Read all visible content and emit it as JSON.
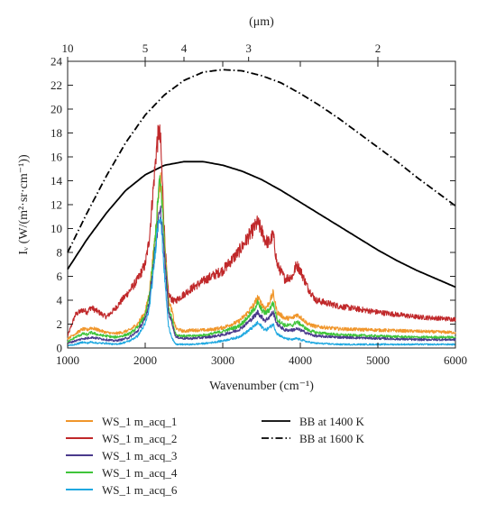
{
  "chart_data": {
    "type": "line",
    "xlabel": "Wavenumber (cm⁻¹)",
    "ylabel": "Iᵥ (W/(m²·sr·cm⁻¹))",
    "top_axis_label": "(μm)",
    "xlim": [
      1000,
      6000
    ],
    "ylim": [
      0,
      24
    ],
    "x_ticks": [
      1000,
      2000,
      3000,
      4000,
      5000,
      6000
    ],
    "y_ticks": [
      0,
      2,
      4,
      6,
      8,
      10,
      12,
      14,
      16,
      18,
      20,
      22,
      24
    ],
    "top_ticks": [
      {
        "label": "10",
        "um": 10
      },
      {
        "label": "5",
        "um": 5
      },
      {
        "label": "4",
        "um": 4
      },
      {
        "label": "3",
        "um": 3
      },
      {
        "label": "2",
        "um": 2
      }
    ],
    "grid": false,
    "legend_position": "bottom",
    "series": [
      {
        "name": "WS_1 m_acq_1",
        "color": "#f0962b",
        "style": "solid",
        "x": [
          1000,
          1100,
          1200,
          1250,
          1300,
          1400,
          1500,
          1600,
          1700,
          1800,
          1900,
          2000,
          2050,
          2100,
          2150,
          2180,
          2200,
          2220,
          2250,
          2280,
          2300,
          2350,
          2380,
          2400,
          2500,
          2600,
          2800,
          3000,
          3200,
          3300,
          3400,
          3450,
          3500,
          3550,
          3600,
          3650,
          3700,
          3800,
          3900,
          3950,
          4000,
          4100,
          4200,
          4500,
          5000,
          5500,
          6000
        ],
        "y": [
          0.8,
          1.2,
          1.6,
          1.5,
          1.7,
          1.5,
          1.3,
          1.2,
          1.3,
          1.5,
          2.0,
          3.0,
          4.5,
          7.5,
          11.0,
          13.5,
          14.0,
          12.5,
          9.0,
          6.0,
          4.0,
          3.0,
          2.0,
          1.6,
          1.4,
          1.5,
          1.5,
          1.7,
          2.2,
          2.8,
          3.6,
          4.2,
          3.7,
          3.3,
          3.8,
          4.6,
          3.0,
          2.5,
          2.5,
          2.8,
          2.6,
          2.0,
          1.8,
          1.6,
          1.5,
          1.4,
          1.3
        ]
      },
      {
        "name": "WS_1 m_acq_2",
        "color": "#c0282a",
        "style": "solid",
        "x": [
          1000,
          1100,
          1200,
          1250,
          1300,
          1400,
          1500,
          1600,
          1700,
          1800,
          1900,
          2000,
          2050,
          2100,
          2150,
          2180,
          2200,
          2220,
          2250,
          2280,
          2300,
          2350,
          2380,
          2400,
          2500,
          2600,
          2800,
          3000,
          3200,
          3300,
          3400,
          3450,
          3500,
          3550,
          3600,
          3650,
          3700,
          3800,
          3900,
          3950,
          4000,
          4100,
          4200,
          4500,
          5000,
          5500,
          6000
        ],
        "y": [
          1.0,
          2.8,
          3.2,
          3.0,
          3.4,
          3.0,
          2.6,
          3.2,
          4.0,
          4.8,
          5.7,
          7.0,
          9.0,
          13.0,
          17.0,
          18.2,
          17.0,
          14.0,
          9.5,
          6.0,
          4.5,
          4.0,
          3.9,
          4.0,
          4.5,
          5.0,
          5.8,
          6.5,
          8.0,
          9.0,
          10.0,
          10.5,
          9.8,
          9.0,
          8.8,
          9.5,
          7.0,
          5.8,
          6.0,
          7.0,
          6.5,
          5.0,
          4.0,
          3.5,
          3.0,
          2.6,
          2.4
        ]
      },
      {
        "name": "WS_1 m_acq_3",
        "color": "#4a3a8c",
        "style": "solid",
        "x": [
          1000,
          1100,
          1200,
          1250,
          1300,
          1400,
          1500,
          1600,
          1700,
          1800,
          1900,
          2000,
          2050,
          2100,
          2150,
          2180,
          2200,
          2220,
          2250,
          2280,
          2300,
          2350,
          2380,
          2400,
          2500,
          2600,
          2800,
          3000,
          3200,
          3300,
          3400,
          3450,
          3500,
          3550,
          3600,
          3650,
          3700,
          3800,
          3900,
          3950,
          4000,
          4100,
          4200,
          4500,
          5000,
          5500,
          6000
        ],
        "y": [
          0.4,
          0.6,
          0.8,
          0.8,
          0.9,
          0.8,
          0.7,
          0.6,
          0.7,
          0.9,
          1.4,
          2.4,
          3.8,
          6.5,
          9.5,
          11.0,
          11.3,
          10.0,
          7.5,
          5.0,
          3.0,
          2.0,
          1.2,
          0.9,
          0.8,
          0.8,
          0.9,
          1.1,
          1.5,
          2.0,
          2.6,
          3.0,
          2.6,
          2.3,
          2.6,
          3.0,
          2.0,
          1.5,
          1.5,
          1.6,
          1.5,
          1.2,
          1.0,
          0.9,
          0.8,
          0.7,
          0.7
        ]
      },
      {
        "name": "WS_1 m_acq_4",
        "color": "#3fc43a",
        "style": "solid",
        "x": [
          1000,
          1100,
          1200,
          1250,
          1300,
          1400,
          1500,
          1600,
          1700,
          1800,
          1900,
          2000,
          2050,
          2100,
          2150,
          2180,
          2200,
          2220,
          2250,
          2280,
          2300,
          2350,
          2380,
          2400,
          2500,
          2600,
          2800,
          3000,
          3200,
          3300,
          3400,
          3450,
          3500,
          3550,
          3600,
          3650,
          3700,
          3800,
          3900,
          3950,
          4000,
          4100,
          4200,
          4500,
          5000,
          5500,
          6000
        ],
        "y": [
          0.5,
          0.9,
          1.2,
          1.1,
          1.3,
          1.1,
          1.0,
          0.9,
          1.0,
          1.2,
          1.7,
          2.7,
          4.2,
          7.0,
          11.0,
          13.8,
          13.5,
          12.0,
          8.5,
          5.5,
          3.5,
          2.3,
          1.5,
          1.1,
          1.0,
          1.0,
          1.1,
          1.4,
          1.8,
          2.4,
          3.2,
          3.8,
          3.2,
          2.9,
          3.2,
          3.8,
          2.4,
          1.9,
          1.9,
          2.2,
          2.0,
          1.5,
          1.3,
          1.1,
          1.0,
          0.9,
          0.9
        ]
      },
      {
        "name": "WS_1 m_acq_6",
        "color": "#1fa8e0",
        "style": "solid",
        "x": [
          1000,
          1100,
          1200,
          1250,
          1300,
          1400,
          1500,
          1600,
          1700,
          1800,
          1900,
          2000,
          2050,
          2100,
          2150,
          2180,
          2200,
          2220,
          2250,
          2280,
          2300,
          2350,
          2380,
          2400,
          2500,
          2600,
          2800,
          3000,
          3200,
          3300,
          3400,
          3450,
          3500,
          3550,
          3600,
          3650,
          3700,
          3800,
          3900,
          3950,
          4000,
          4100,
          4200,
          4500,
          5000,
          5500,
          6000
        ],
        "y": [
          0.2,
          0.3,
          0.5,
          0.4,
          0.5,
          0.4,
          0.4,
          0.3,
          0.4,
          0.6,
          1.0,
          2.0,
          3.2,
          6.0,
          9.5,
          11.2,
          11.0,
          9.0,
          6.0,
          3.5,
          1.8,
          0.8,
          0.4,
          0.3,
          0.3,
          0.3,
          0.4,
          0.6,
          0.9,
          1.3,
          1.8,
          2.1,
          1.8,
          1.5,
          1.7,
          2.0,
          1.2,
          0.8,
          0.7,
          0.8,
          0.7,
          0.5,
          0.4,
          0.3,
          0.3,
          0.3,
          0.3
        ]
      },
      {
        "name": "BB at 1400 K",
        "color": "#000000",
        "style": "solid",
        "x": [
          1000,
          1250,
          1500,
          1750,
          2000,
          2250,
          2500,
          2750,
          3000,
          3250,
          3500,
          3750,
          4000,
          4250,
          4500,
          4750,
          5000,
          5250,
          5500,
          5750,
          6000
        ],
        "y": [
          6.6,
          9.1,
          11.3,
          13.2,
          14.5,
          15.3,
          15.6,
          15.6,
          15.3,
          14.8,
          14.1,
          13.2,
          12.2,
          11.2,
          10.2,
          9.2,
          8.2,
          7.3,
          6.5,
          5.8,
          5.1
        ]
      },
      {
        "name": "BB at 1600 K",
        "color": "#000000",
        "style": "dashdot",
        "x": [
          1000,
          1250,
          1500,
          1750,
          2000,
          2250,
          2500,
          2750,
          3000,
          3250,
          3500,
          3750,
          4000,
          4250,
          4500,
          4750,
          5000,
          5250,
          5500,
          5750,
          6000
        ],
        "y": [
          8.0,
          11.3,
          14.4,
          17.2,
          19.5,
          21.2,
          22.4,
          23.1,
          23.3,
          23.2,
          22.8,
          22.2,
          21.3,
          20.3,
          19.2,
          18.0,
          16.8,
          15.6,
          14.3,
          13.1,
          11.9
        ]
      }
    ]
  }
}
